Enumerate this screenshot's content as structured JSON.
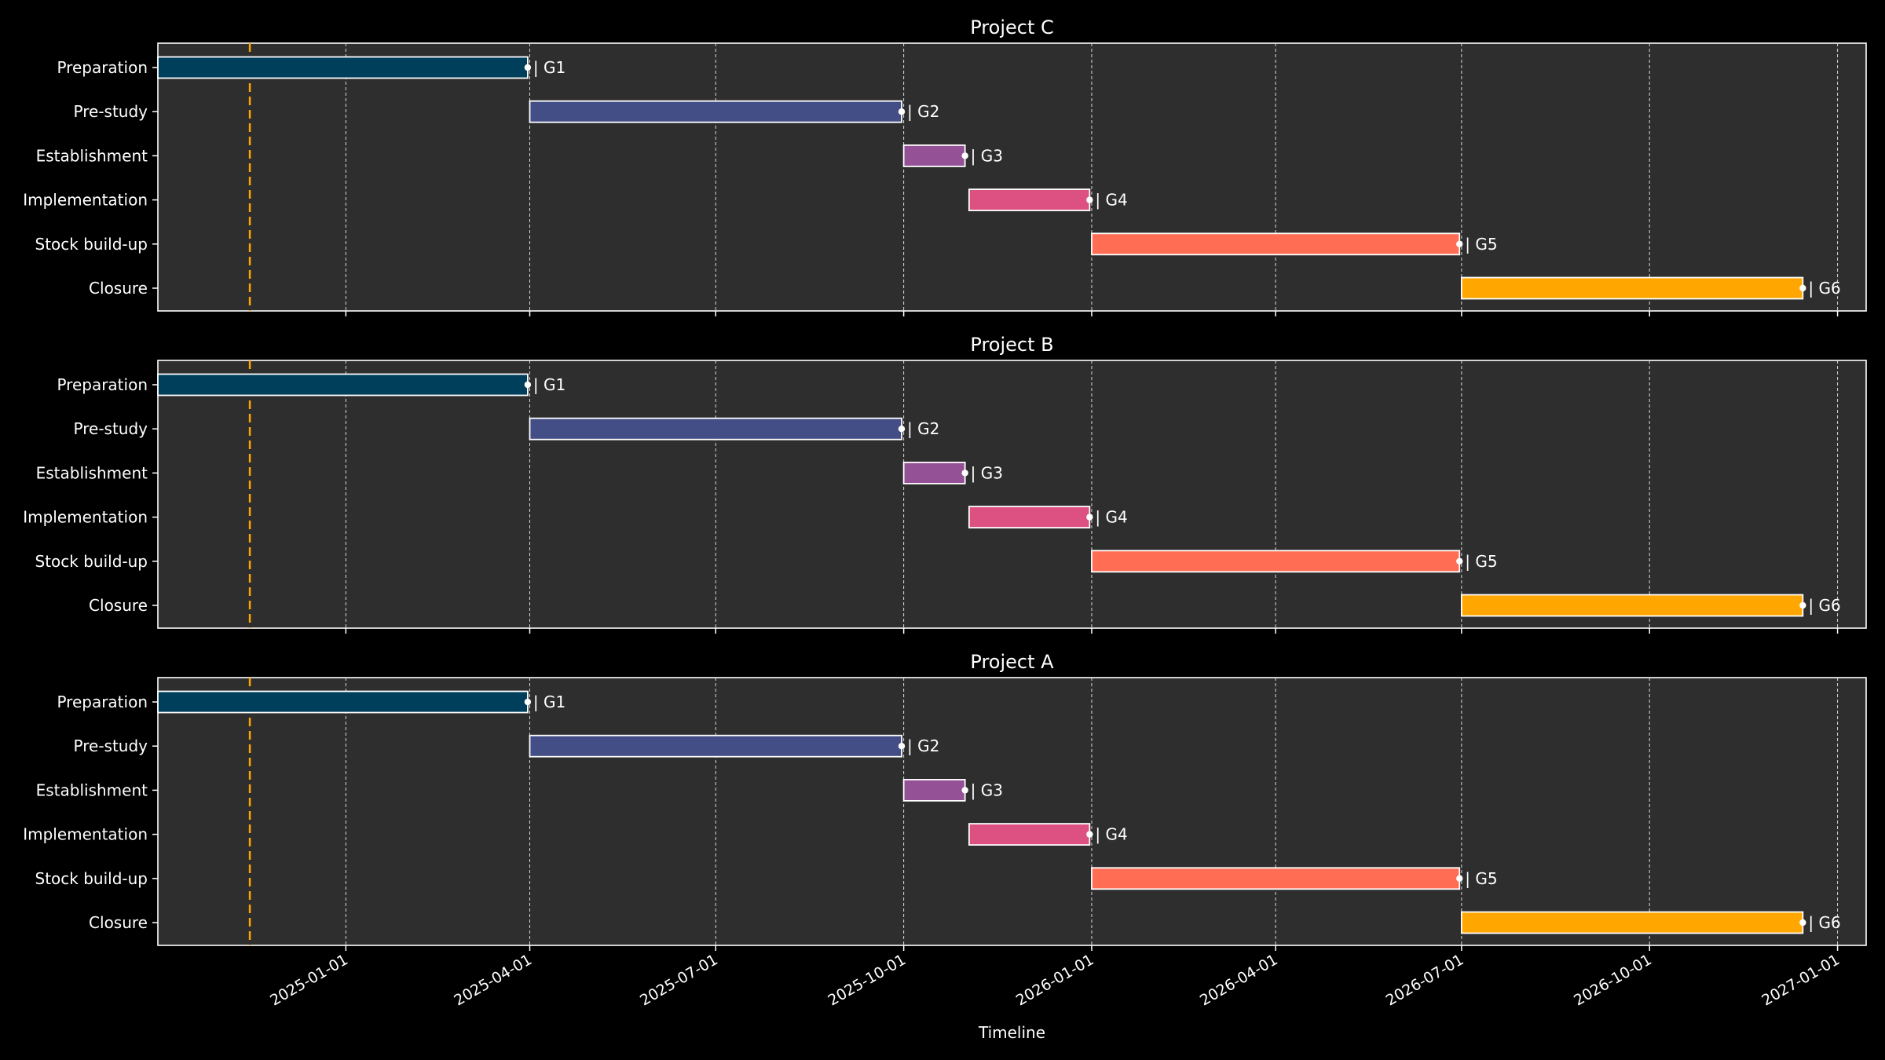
{
  "chart_data": [
    {
      "type": "gantt",
      "title": "Project C",
      "today": "2024-11-15",
      "xlim": [
        "2024-10-01",
        "2027-01-15"
      ],
      "tasks": [
        {
          "name": "Preparation",
          "start": "2024-10-01",
          "end": "2025-03-31",
          "gate": "| G1",
          "color": "#003f5c"
        },
        {
          "name": "Pre-study",
          "start": "2025-04-01",
          "end": "2025-09-30",
          "gate": "| G2",
          "color": "#444e86"
        },
        {
          "name": "Establishment",
          "start": "2025-10-01",
          "end": "2025-10-31",
          "gate": "| G3",
          "color": "#955196"
        },
        {
          "name": "Implementation",
          "start": "2025-11-02",
          "end": "2025-12-31",
          "gate": "| G4",
          "color": "#dd5182"
        },
        {
          "name": "Stock build-up",
          "start": "2026-01-01",
          "end": "2026-06-30",
          "gate": "| G5",
          "color": "#ff6e54"
        },
        {
          "name": "Closure",
          "start": "2026-07-01",
          "end": "2026-12-15",
          "gate": "| G6",
          "color": "#ffa600"
        }
      ]
    },
    {
      "type": "gantt",
      "title": "Project B",
      "today": "2024-11-15",
      "xlim": [
        "2024-10-01",
        "2027-01-15"
      ],
      "tasks": [
        {
          "name": "Preparation",
          "start": "2024-10-01",
          "end": "2025-03-31",
          "gate": "| G1",
          "color": "#003f5c"
        },
        {
          "name": "Pre-study",
          "start": "2025-04-01",
          "end": "2025-09-30",
          "gate": "| G2",
          "color": "#444e86"
        },
        {
          "name": "Establishment",
          "start": "2025-10-01",
          "end": "2025-10-31",
          "gate": "| G3",
          "color": "#955196"
        },
        {
          "name": "Implementation",
          "start": "2025-11-02",
          "end": "2025-12-31",
          "gate": "| G4",
          "color": "#dd5182"
        },
        {
          "name": "Stock build-up",
          "start": "2026-01-01",
          "end": "2026-06-30",
          "gate": "| G5",
          "color": "#ff6e54"
        },
        {
          "name": "Closure",
          "start": "2026-07-01",
          "end": "2026-12-15",
          "gate": "| G6",
          "color": "#ffa600"
        }
      ]
    },
    {
      "type": "gantt",
      "title": "Project A",
      "today": "2024-11-15",
      "xlim": [
        "2024-10-01",
        "2027-01-15"
      ],
      "tasks": [
        {
          "name": "Preparation",
          "start": "2024-10-01",
          "end": "2025-03-31",
          "gate": "| G1",
          "color": "#003f5c"
        },
        {
          "name": "Pre-study",
          "start": "2025-04-01",
          "end": "2025-09-30",
          "gate": "| G2",
          "color": "#444e86"
        },
        {
          "name": "Establishment",
          "start": "2025-10-01",
          "end": "2025-10-31",
          "gate": "| G3",
          "color": "#955196"
        },
        {
          "name": "Implementation",
          "start": "2025-11-02",
          "end": "2025-12-31",
          "gate": "| G4",
          "color": "#dd5182"
        },
        {
          "name": "Stock build-up",
          "start": "2026-01-01",
          "end": "2026-06-30",
          "gate": "| G5",
          "color": "#ff6e54"
        },
        {
          "name": "Closure",
          "start": "2026-07-01",
          "end": "2026-12-15",
          "gate": "| G6",
          "color": "#ffa600"
        }
      ]
    }
  ],
  "x_ticks": [
    "2025-01-01",
    "2025-04-01",
    "2025-07-01",
    "2025-10-01",
    "2026-01-01",
    "2026-04-01",
    "2026-07-01",
    "2026-10-01",
    "2027-01-01"
  ],
  "xlabel": "Timeline",
  "grid": "x-dashed",
  "background": "#000000",
  "panel_color": "#2e2e2e",
  "today_color": "#ffa500"
}
